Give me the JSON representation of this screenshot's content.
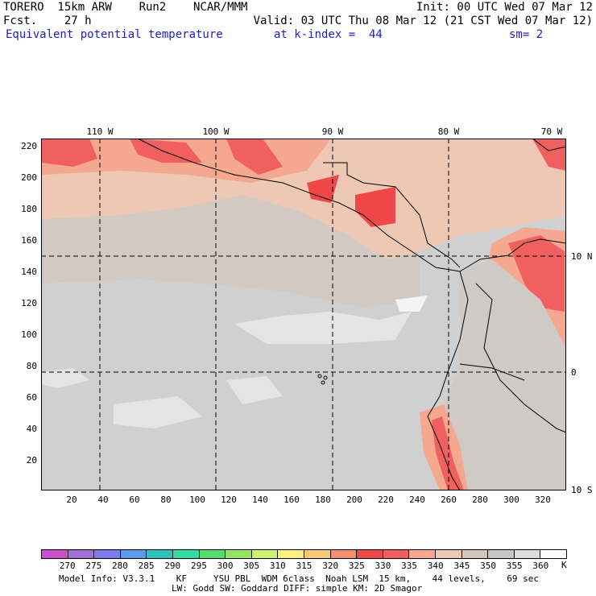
{
  "header": {
    "line1_left": "TORERO  15km ARW    Run2    NCAR/MMM",
    "line1_right": "Init: 00 UTC Wed 07 Mar 12",
    "line2_left": "Fcst.    27 h",
    "line2_right": "Valid: 03 UTC Thu 08 Mar 12 (21 CST Wed 07 Mar 12)",
    "field_name": "Equivalent potential temperature",
    "k_index": "at k-index =  44",
    "smoothing": "sm= 2"
  },
  "map": {
    "lon_labels": [
      "110 W",
      "100 W",
      "90 W",
      "80 W",
      "70 W"
    ],
    "lat_labels": [
      "10 N",
      "0",
      "10 S"
    ],
    "y_ticks": [
      "220",
      "200",
      "180",
      "160",
      "140",
      "120",
      "100",
      "80",
      "60",
      "40",
      "20"
    ],
    "x_ticks": [
      "20",
      "40",
      "60",
      "80",
      "100",
      "120",
      "140",
      "160",
      "180",
      "200",
      "220",
      "240",
      "260",
      "280",
      "300",
      "320"
    ]
  },
  "colorbar": {
    "labels": [
      "270",
      "275",
      "280",
      "285",
      "290",
      "295",
      "300",
      "305",
      "310",
      "315",
      "320",
      "325",
      "330",
      "335",
      "340",
      "345",
      "350",
      "355",
      "360"
    ],
    "unit": "K",
    "colors": [
      "#c850c8",
      "#a070d8",
      "#7c7cec",
      "#5c9cf0",
      "#30c0c0",
      "#30dca0",
      "#50e070",
      "#90e860",
      "#d0f070",
      "#f8f080",
      "#f8c878",
      "#f89070",
      "#f04848",
      "#f06060",
      "#f8a890",
      "#f0c8b0",
      "#d0c8c0",
      "#c8c8c8",
      "#dcdcdc",
      "#ffffff"
    ]
  },
  "footer": {
    "line1": "Model Info: V3.3.1    KF     YSU PBL  WDM 6class  Noah LSM  15 km,    44 levels,    69 sec",
    "line2": "LW: Godd SW: Goddard DIFF: simple KM: 2D Smagor"
  }
}
